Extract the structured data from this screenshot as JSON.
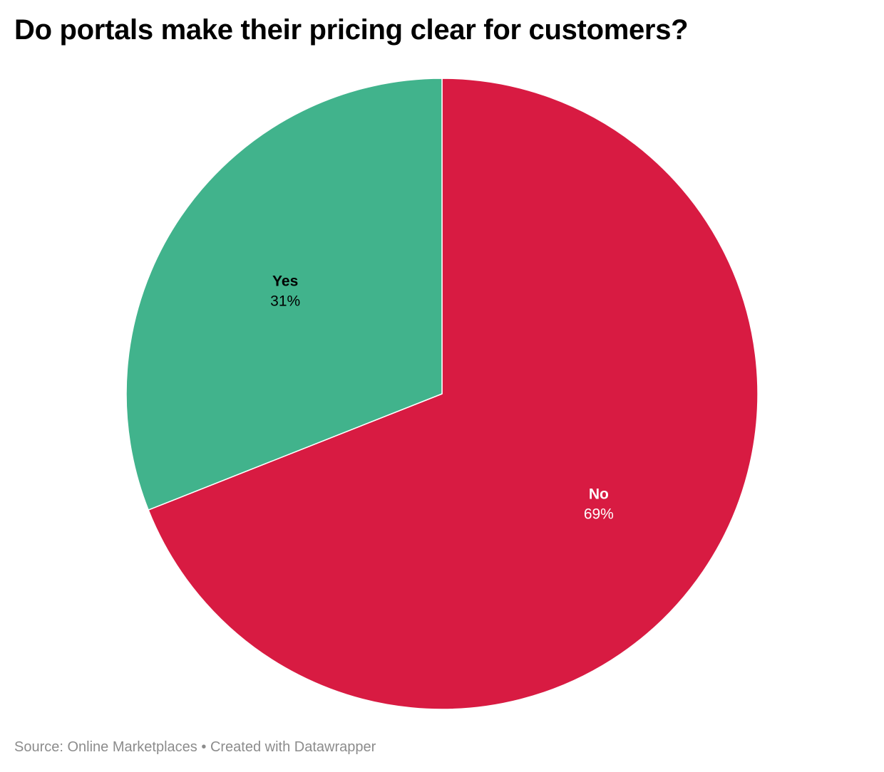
{
  "chart_data": {
    "type": "pie",
    "title": "Do portals make their pricing clear for customers?",
    "slices": [
      {
        "label": "No",
        "value": 69,
        "display": "69%",
        "color": "#d81b42",
        "text_color": "#ffffff"
      },
      {
        "label": "Yes",
        "value": 31,
        "display": "31%",
        "color": "#41b38c",
        "text_color": "#000000"
      }
    ],
    "start_angle_deg": 0,
    "direction": "clockwise"
  },
  "footer": {
    "source": "Source: Online Marketplaces",
    "separator": "•",
    "credit": "Created with Datawrapper"
  }
}
